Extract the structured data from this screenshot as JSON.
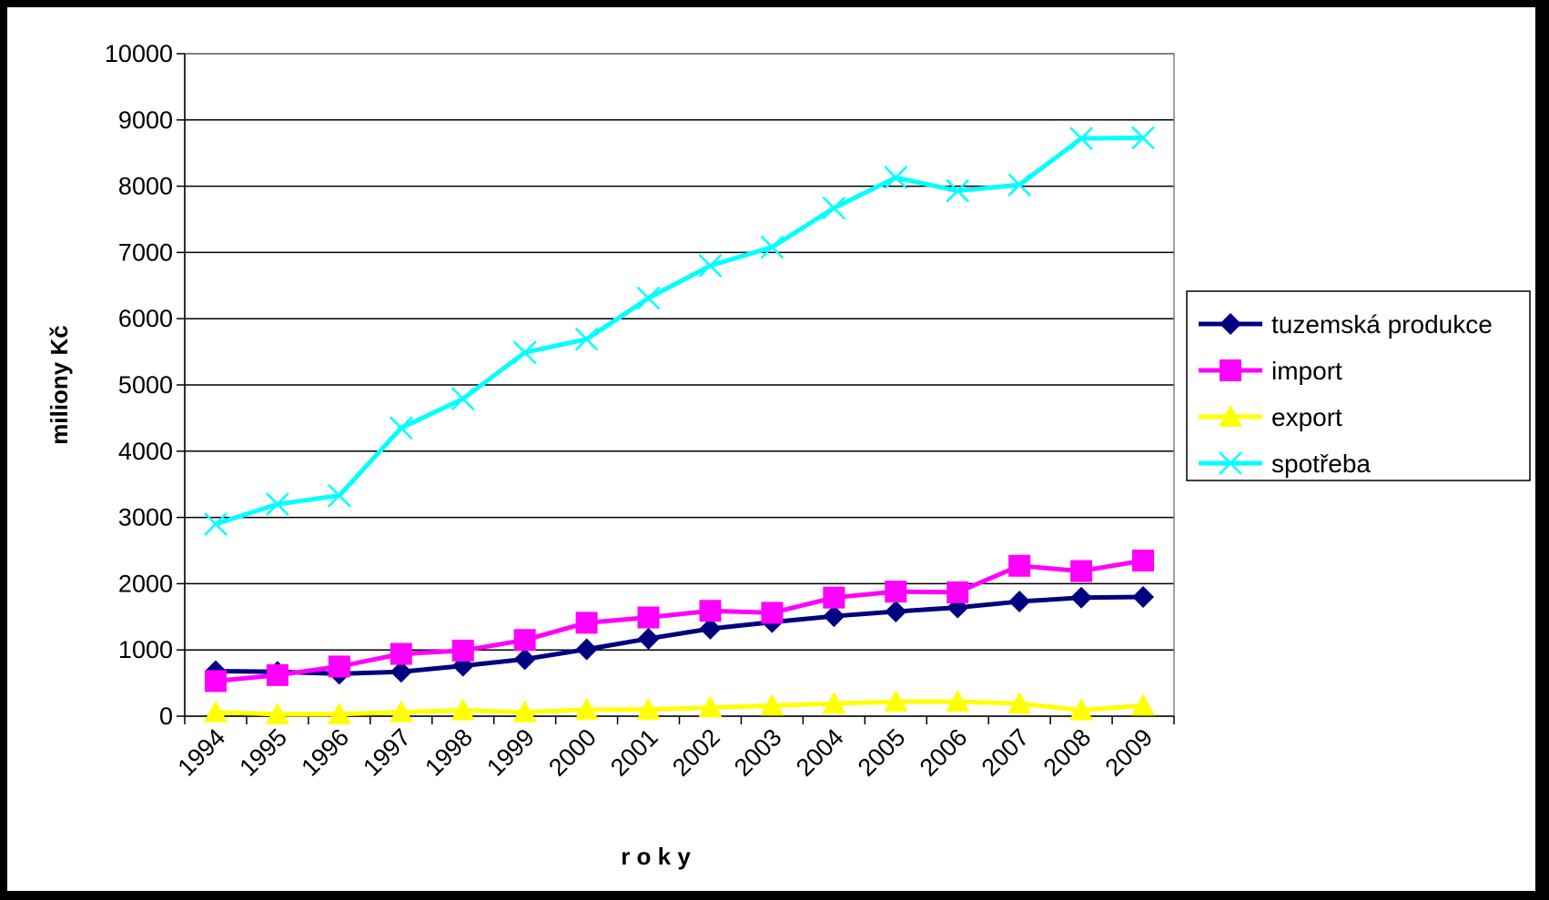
{
  "chart_data": {
    "type": "line",
    "x": [
      "1994",
      "1995",
      "1996",
      "1997",
      "1998",
      "1999",
      "2000",
      "2001",
      "2002",
      "2003",
      "2004",
      "2005",
      "2006",
      "2007",
      "2008",
      "2009"
    ],
    "series": [
      {
        "name": "tuzemská produkce",
        "color": "#000080",
        "marker": "diamond",
        "values": [
          680,
          670,
          640,
          670,
          760,
          860,
          1010,
          1170,
          1320,
          1420,
          1510,
          1580,
          1640,
          1730,
          1790,
          1800
        ]
      },
      {
        "name": "import",
        "color": "#ff00ff",
        "marker": "square",
        "values": [
          530,
          620,
          750,
          940,
          990,
          1150,
          1410,
          1490,
          1590,
          1560,
          1790,
          1880,
          1870,
          2270,
          2190,
          2350
        ]
      },
      {
        "name": "export",
        "color": "#ffff00",
        "marker": "triangle",
        "values": [
          60,
          30,
          30,
          60,
          90,
          60,
          100,
          100,
          130,
          160,
          190,
          220,
          220,
          190,
          90,
          160
        ]
      },
      {
        "name": "spotřeba",
        "color": "#00ffff",
        "marker": "x",
        "values": [
          2900,
          3200,
          3330,
          4350,
          4790,
          5490,
          5690,
          6310,
          6800,
          7080,
          7670,
          8130,
          7930,
          8020,
          8720,
          8730
        ]
      }
    ],
    "xlabel": "r o k y",
    "ylabel": "miliony Kč",
    "ylim": [
      0,
      10000
    ],
    "yticks": [
      "0",
      "1000",
      "2000",
      "3000",
      "4000",
      "5000",
      "6000",
      "7000",
      "8000",
      "9000",
      "10000"
    ],
    "grid": "horizontal",
    "legend_position": "right"
  }
}
